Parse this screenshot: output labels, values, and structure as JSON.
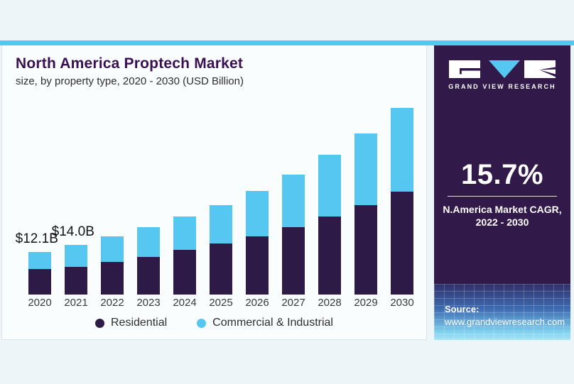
{
  "header": {
    "title": "North America Proptech Market",
    "subtitle": "size, by property type, 2020 - 2030 (USD Billion)"
  },
  "chart_data": {
    "type": "bar",
    "stacked": true,
    "title": "North America Proptech Market size, by property type, 2020 - 2030 (USD Billion)",
    "unit": "USD Billion",
    "categories": [
      "2020",
      "2021",
      "2022",
      "2023",
      "2024",
      "2025",
      "2026",
      "2027",
      "2028",
      "2029",
      "2030"
    ],
    "series": [
      {
        "name": "Residential",
        "color": "#2e1a47",
        "values": [
          7.2,
          7.8,
          9.2,
          10.6,
          12.6,
          14.4,
          16.4,
          19.0,
          22.0,
          25.2,
          29.0
        ]
      },
      {
        "name": "Commercial & Industrial",
        "color": "#56c7f1",
        "values": [
          4.9,
          6.2,
          7.2,
          8.4,
          9.4,
          10.8,
          12.8,
          14.8,
          17.4,
          20.2,
          23.6
        ]
      }
    ],
    "totals": [
      12.1,
      14.0,
      16.4,
      19.0,
      22.0,
      25.2,
      29.2,
      33.8,
      39.4,
      45.4,
      52.6
    ],
    "annotations": [
      {
        "index": 0,
        "label": "$12.1B"
      },
      {
        "index": 1,
        "label": "$14.0B"
      }
    ],
    "ylim": [
      0,
      55
    ],
    "grid": false,
    "legend_position": "bottom"
  },
  "legend": {
    "items": [
      {
        "label": "Residential",
        "color": "#2e1a47"
      },
      {
        "label": "Commercial & Industrial",
        "color": "#56c7f1"
      }
    ]
  },
  "sidebar": {
    "brand": "GRAND VIEW RESEARCH",
    "stat_value": "15.7%",
    "stat_caption_line1": "N.America Market CAGR,",
    "stat_caption_line2": "2022 - 2030",
    "source_label": "Source:",
    "source_url": "www.grandviewresearch.com"
  },
  "colors": {
    "accent_cyan": "#56c7f1",
    "bar_purple": "#2e1a47",
    "panel_purple": "#31194a",
    "title_purple": "#3a1053",
    "page_background": "#eef5f9"
  }
}
